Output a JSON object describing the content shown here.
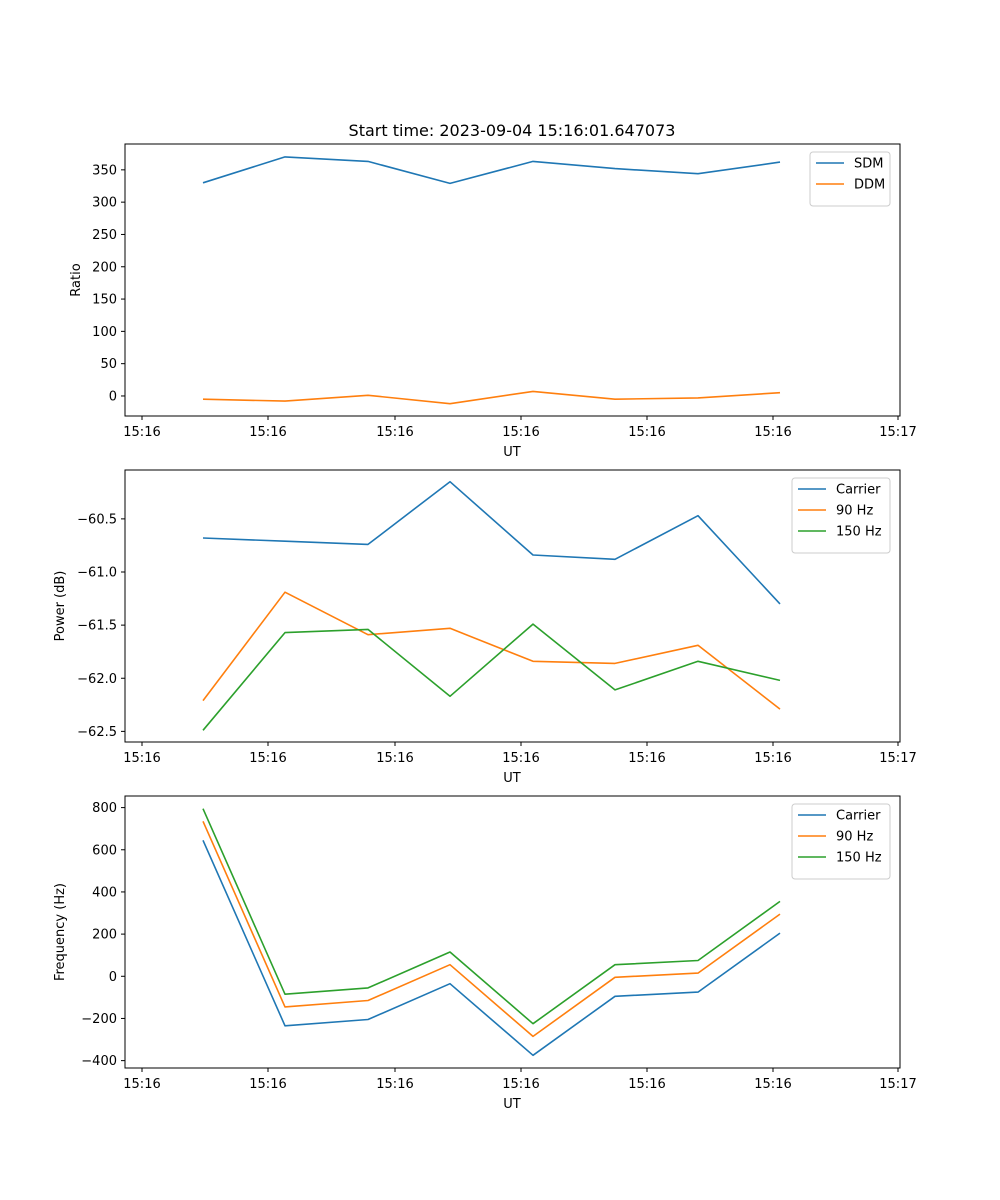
{
  "figure": {
    "title": "Start time: 2023-09-04 15:16:01.647073"
  },
  "chart_data": [
    {
      "type": "line",
      "xlabel": "UT",
      "ylabel": "Ratio",
      "x_tick_labels": [
        "15:16",
        "15:16",
        "15:16",
        "15:16",
        "15:16",
        "15:16",
        "15:16",
        "15:17"
      ],
      "ylim": [
        -31,
        390
      ],
      "y_ticks": [
        0,
        50,
        100,
        150,
        200,
        250,
        300,
        350
      ],
      "legend_position": "top-right",
      "series": [
        {
          "name": "SDM",
          "color": "#1f77b4",
          "values": [
            330,
            370,
            363,
            329,
            363,
            352,
            344,
            362
          ]
        },
        {
          "name": "DDM",
          "color": "#ff7f0e",
          "values": [
            -5,
            -8,
            1,
            -12,
            7,
            -5,
            -3,
            5
          ]
        }
      ]
    },
    {
      "type": "line",
      "xlabel": "UT",
      "ylabel": "Power (dB)",
      "x_tick_labels": [
        "15:16",
        "15:16",
        "15:16",
        "15:16",
        "15:16",
        "15:16",
        "15:16",
        "15:17"
      ],
      "ylim": [
        -62.6,
        -60.04
      ],
      "y_ticks": [
        -62.5,
        -62.0,
        -61.5,
        -61.0,
        -60.5
      ],
      "y_tick_labels": [
        "−62.5",
        "−62.0",
        "−61.5",
        "−61.0",
        "−60.5"
      ],
      "legend_position": "top-right",
      "series": [
        {
          "name": "Carrier",
          "color": "#1f77b4",
          "values": [
            -60.68,
            -60.71,
            -60.74,
            -60.15,
            -60.84,
            -60.88,
            -60.47,
            -61.3
          ]
        },
        {
          "name": "90 Hz",
          "color": "#ff7f0e",
          "values": [
            -62.21,
            -61.19,
            -61.59,
            -61.53,
            -61.84,
            -61.86,
            -61.69,
            -62.29
          ]
        },
        {
          "name": "150 Hz",
          "color": "#2ca02c",
          "values": [
            -62.49,
            -61.57,
            -61.54,
            -62.17,
            -61.49,
            -62.11,
            -61.84,
            -62.02
          ]
        }
      ]
    },
    {
      "type": "line",
      "xlabel": "UT",
      "ylabel": "Frequency (Hz)",
      "x_tick_labels": [
        "15:16",
        "15:16",
        "15:16",
        "15:16",
        "15:16",
        "15:16",
        "15:16",
        "15:17"
      ],
      "ylim": [
        -435,
        855
      ],
      "y_ticks": [
        -400,
        -200,
        0,
        200,
        400,
        600,
        800
      ],
      "y_tick_labels": [
        "−400",
        "−200",
        "0",
        "200",
        "400",
        "600",
        "800"
      ],
      "legend_position": "top-right",
      "series": [
        {
          "name": "Carrier",
          "color": "#1f77b4",
          "values": [
            645,
            -235,
            -205,
            -35,
            -375,
            -95,
            -75,
            205
          ]
        },
        {
          "name": "90 Hz",
          "color": "#ff7f0e",
          "values": [
            735,
            -145,
            -115,
            55,
            -285,
            -5,
            15,
            295
          ]
        },
        {
          "name": "150 Hz",
          "color": "#2ca02c",
          "values": [
            795,
            -85,
            -55,
            115,
            -225,
            55,
            75,
            355
          ]
        }
      ]
    }
  ]
}
